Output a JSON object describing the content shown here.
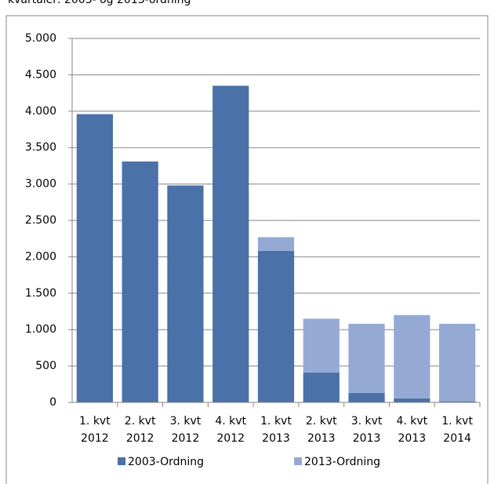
{
  "chart_data": {
    "type": "stacked-bar",
    "title": "kvartaler: 2003- og 2013-ordning",
    "categories": [
      "1. kvt 2012",
      "2. kvt 2012",
      "3. kvt 2012",
      "4. kvt 2012",
      "1. kvt 2013",
      "2. kvt 2013",
      "3. kvt 2013",
      "4. kvt 2013",
      "1. kvt 2014"
    ],
    "series": [
      {
        "name": "2003-Ordning",
        "color": "#4a71a8",
        "values": [
          3960,
          3310,
          2980,
          4350,
          2080,
          410,
          130,
          55,
          15
        ]
      },
      {
        "name": "2013-Ordning",
        "color": "#94aad4",
        "values": [
          0,
          0,
          0,
          0,
          190,
          740,
          950,
          1145,
          1065
        ]
      }
    ],
    "ylim": [
      0,
      5000
    ],
    "yticks": [
      0,
      500,
      {
        "value": 1000,
        "label": "1.000"
      },
      {
        "value": 1500,
        "label": "1.500"
      },
      {
        "value": 2000,
        "label": "2.000"
      },
      {
        "value": 2500,
        "label": "2.500"
      },
      {
        "value": 3000,
        "label": "3.000"
      },
      {
        "value": 3500,
        "label": "3.500"
      },
      {
        "value": 4000,
        "label": "4.000"
      },
      {
        "value": 4500,
        "label": "4.500"
      },
      {
        "value": 5000,
        "label": "5.000"
      }
    ],
    "grid": true
  }
}
